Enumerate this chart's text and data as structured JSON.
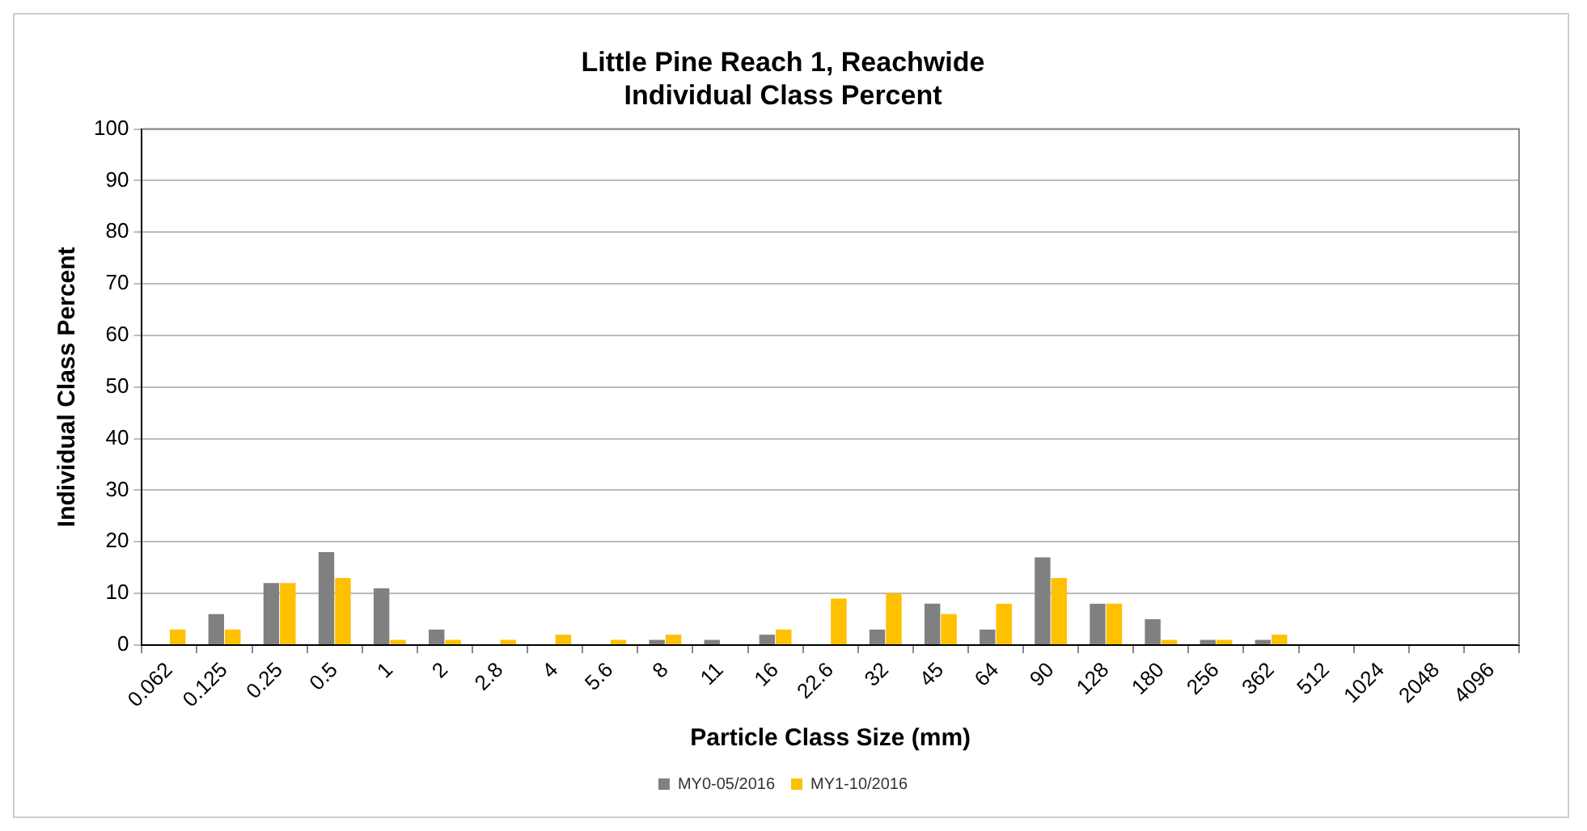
{
  "chart_data": {
    "type": "bar",
    "title": "Little Pine Reach 1, Reachwide\nIndividual Class Percent",
    "xlabel": "Particle Class Size (mm)",
    "ylabel": "Individual Class Percent",
    "categories": [
      "0.062",
      "0.125",
      "0.25",
      "0.5",
      "1",
      "2",
      "2.8",
      "4",
      "5.6",
      "8",
      "11",
      "16",
      "22.6",
      "32",
      "45",
      "64",
      "90",
      "128",
      "180",
      "256",
      "362",
      "512",
      "1024",
      "2048",
      "4096"
    ],
    "series": [
      {
        "name": "MY0-05/2016",
        "color": "#808080",
        "values": [
          0,
          6,
          12,
          18,
          11,
          3,
          0,
          0,
          0,
          1,
          1,
          2,
          0,
          3,
          8,
          3,
          17,
          8,
          5,
          1,
          1,
          0,
          0,
          0,
          0
        ]
      },
      {
        "name": "MY1-10/2016",
        "color": "#ffc000",
        "values": [
          3,
          3,
          12,
          13,
          1,
          1,
          1,
          2,
          1,
          2,
          0,
          3,
          9,
          10,
          6,
          8,
          13,
          8,
          1,
          1,
          2,
          0,
          0,
          0,
          0
        ]
      }
    ],
    "ylim": [
      0,
      100
    ],
    "yticks": [
      0,
      10,
      20,
      30,
      40,
      50,
      60,
      70,
      80,
      90,
      100
    ],
    "grid": "y",
    "legend": "bottom"
  }
}
